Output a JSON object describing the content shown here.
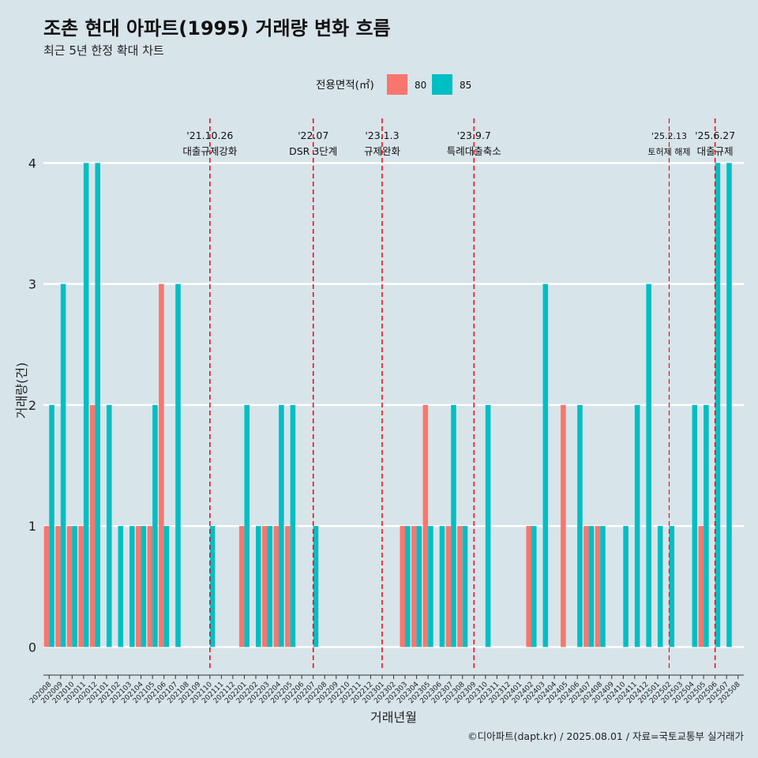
{
  "title": "조촌 현대 아파트(1995) 거래량 변화 흐름",
  "subtitle": "최근 5년 한정 확대 차트",
  "caption": "©디아파트(dapt.kr) / 2025.08.01 / 자료=국토교통부 실거래가",
  "colors": {
    "background": "#d7e4ea",
    "grid": "#ffffff",
    "vline": "#e8141c",
    "s80": "#f8766d",
    "s85": "#00bfc4"
  },
  "chart_data": {
    "type": "bar",
    "xlabel": "거래년월",
    "ylabel": "거래량(건)",
    "ylim": [
      -0.18,
      4.42
    ],
    "yticks": [
      0,
      1,
      2,
      3,
      4
    ],
    "grid": true,
    "legend": {
      "title": "전용면적(㎡)",
      "position": "top"
    },
    "categories": [
      "202008",
      "202009",
      "202010",
      "202011",
      "202012",
      "202101",
      "202102",
      "202103",
      "202104",
      "202105",
      "202106",
      "202107",
      "202108",
      "202109",
      "202110",
      "202111",
      "202112",
      "202201",
      "202202",
      "202203",
      "202204",
      "202205",
      "202206",
      "202207",
      "202208",
      "202209",
      "202210",
      "202211",
      "202212",
      "202301",
      "202302",
      "202303",
      "202304",
      "202305",
      "202306",
      "202307",
      "202308",
      "202309",
      "202310",
      "202311",
      "202312",
      "202401",
      "202402",
      "202403",
      "202404",
      "202405",
      "202406",
      "202407",
      "202408",
      "202409",
      "202410",
      "202411",
      "202412",
      "202501",
      "202502",
      "202503",
      "202504",
      "202505",
      "202506",
      "202507",
      "202508"
    ],
    "series": [
      {
        "name": "80",
        "color": "#f8766d",
        "values": [
          1,
          1,
          1,
          1,
          2,
          0,
          0,
          0,
          1,
          1,
          3,
          0,
          0,
          0,
          0,
          0,
          0,
          1,
          0,
          1,
          1,
          1,
          0,
          0,
          0,
          0,
          0,
          0,
          0,
          0,
          0,
          1,
          1,
          2,
          0,
          1,
          1,
          0,
          0,
          0,
          0,
          0,
          1,
          0,
          0,
          2,
          0,
          1,
          1,
          0,
          0,
          0,
          0,
          0,
          0,
          0,
          0,
          1,
          0,
          0,
          0
        ]
      },
      {
        "name": "85",
        "color": "#00bfc4",
        "values": [
          2,
          3,
          1,
          4,
          4,
          2,
          1,
          1,
          1,
          2,
          1,
          3,
          0,
          0,
          1,
          0,
          0,
          2,
          1,
          1,
          2,
          2,
          0,
          1,
          0,
          0,
          0,
          0,
          0,
          0,
          0,
          1,
          1,
          1,
          1,
          2,
          1,
          0,
          2,
          0,
          0,
          0,
          1,
          3,
          0,
          0,
          2,
          1,
          1,
          0,
          1,
          2,
          3,
          1,
          1,
          0,
          2,
          2,
          4,
          4,
          0
        ]
      }
    ],
    "annotations": [
      {
        "x": "202110",
        "date": "'21.10.26",
        "label": "대출규제강화",
        "size": "large"
      },
      {
        "x": "202207",
        "date": "'22.07",
        "label": "DSR 3단계",
        "size": "large"
      },
      {
        "x": "202301",
        "date": "'23.1.3",
        "label": "규제완화",
        "size": "large"
      },
      {
        "x": "202309",
        "date": "'23.9.7",
        "label": "특례대출축소",
        "size": "large"
      },
      {
        "x": "202502",
        "date": "'25.2.13",
        "label": "토허제 해제",
        "size": "small"
      },
      {
        "x": "202506",
        "date": "'25.6.27",
        "label": "대출규제",
        "size": "large"
      }
    ]
  }
}
